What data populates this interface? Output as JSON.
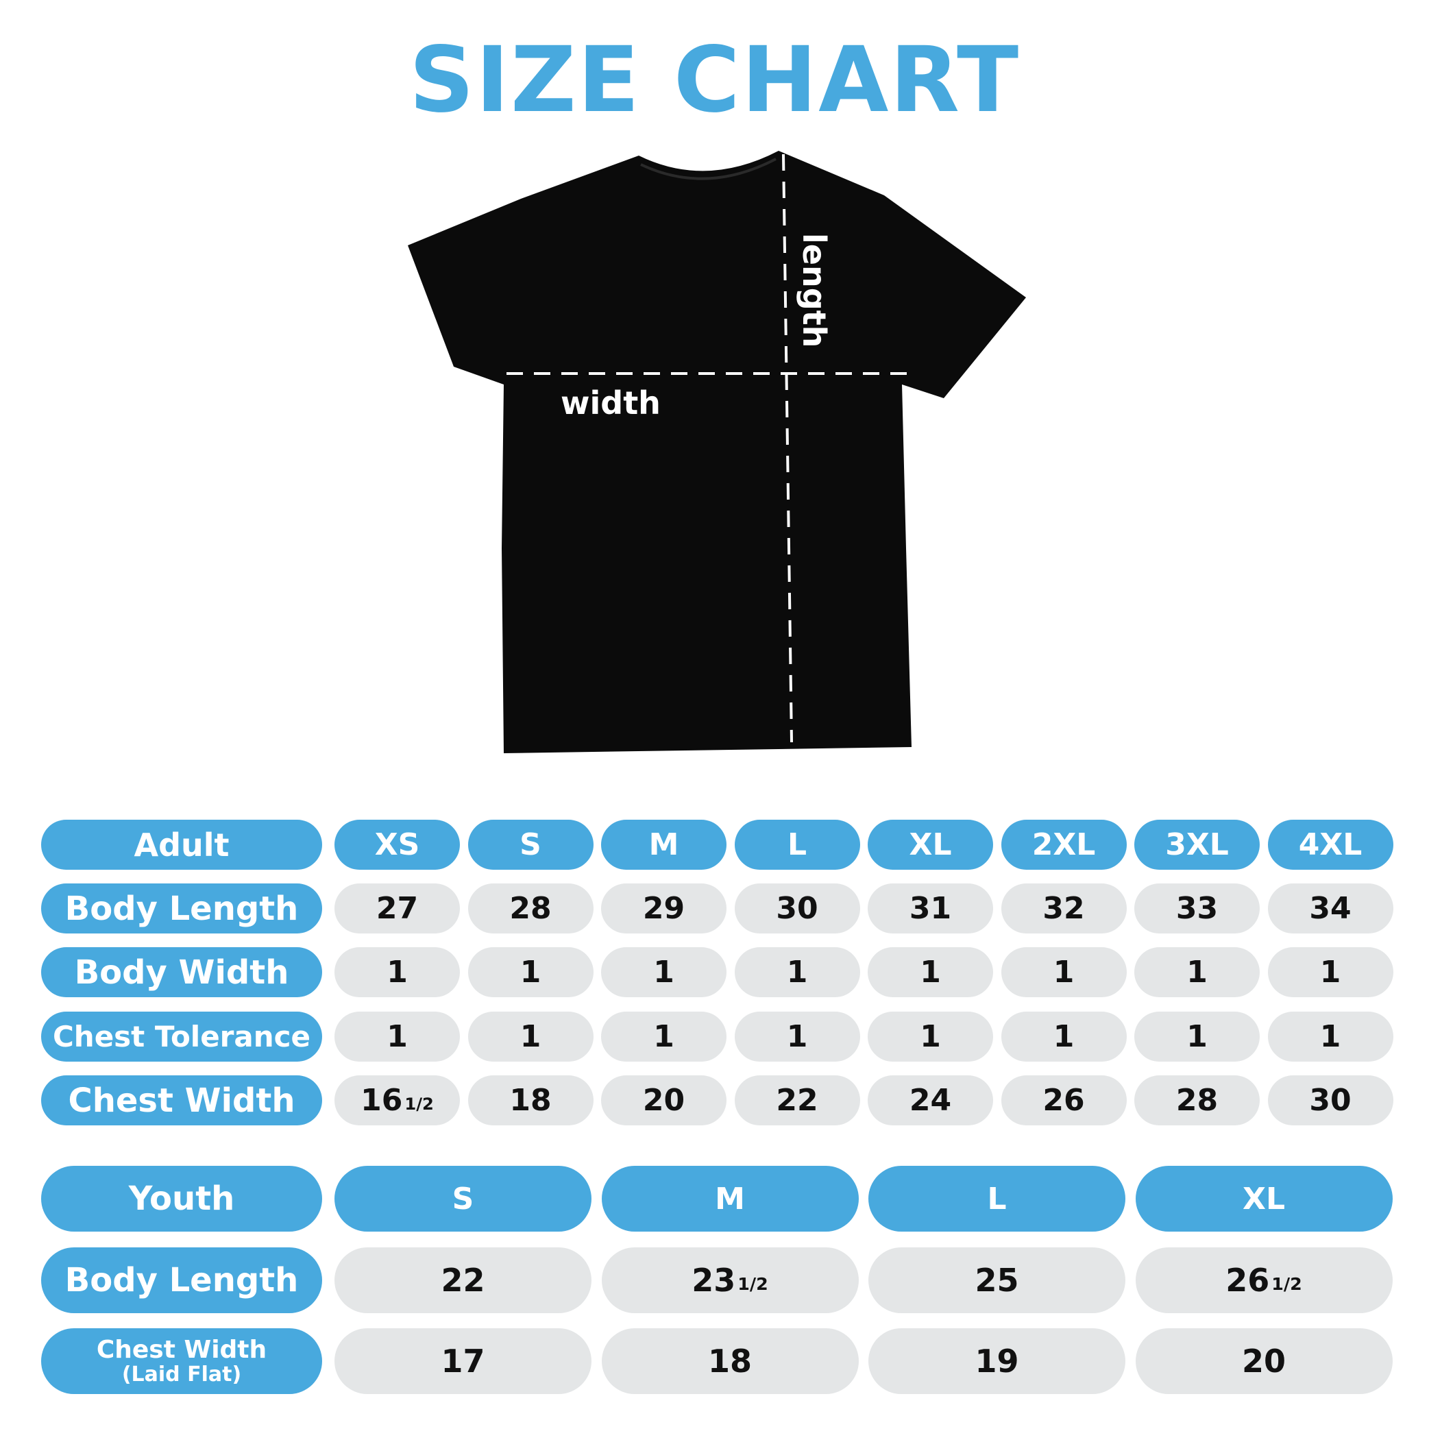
{
  "title": "SIZE CHART",
  "colors": {
    "accent": "#48a9de",
    "cell": "#e4e6e7",
    "shirt": "#0b0b0b"
  },
  "shirt": {
    "width_label": "width",
    "length_label": "length"
  },
  "adult": {
    "header": "Adult",
    "sizes": [
      "XS",
      "S",
      "M",
      "L",
      "XL",
      "2XL",
      "3XL",
      "4XL"
    ],
    "rows": [
      {
        "label": "Body Length",
        "values": [
          {
            "v": "27"
          },
          {
            "v": "28"
          },
          {
            "v": "29"
          },
          {
            "v": "30"
          },
          {
            "v": "31"
          },
          {
            "v": "32"
          },
          {
            "v": "33"
          },
          {
            "v": "34"
          }
        ]
      },
      {
        "label": "Body Width",
        "values": [
          {
            "v": "1"
          },
          {
            "v": "1"
          },
          {
            "v": "1"
          },
          {
            "v": "1"
          },
          {
            "v": "1"
          },
          {
            "v": "1"
          },
          {
            "v": "1"
          },
          {
            "v": "1"
          }
        ]
      },
      {
        "label": "Chest Tolerance",
        "values": [
          {
            "v": "1"
          },
          {
            "v": "1"
          },
          {
            "v": "1"
          },
          {
            "v": "1"
          },
          {
            "v": "1"
          },
          {
            "v": "1"
          },
          {
            "v": "1"
          },
          {
            "v": "1"
          }
        ]
      },
      {
        "label": "Chest Width",
        "values": [
          {
            "v": "16",
            "frac": "1/2"
          },
          {
            "v": "18"
          },
          {
            "v": "20"
          },
          {
            "v": "22"
          },
          {
            "v": "24"
          },
          {
            "v": "26"
          },
          {
            "v": "28"
          },
          {
            "v": "30"
          }
        ]
      }
    ]
  },
  "youth": {
    "header": "Youth",
    "sizes": [
      "S",
      "M",
      "L",
      "XL"
    ],
    "rows": [
      {
        "label": "Body Length",
        "values": [
          {
            "v": "22"
          },
          {
            "v": "23",
            "frac": "1/2"
          },
          {
            "v": "25"
          },
          {
            "v": "26",
            "frac": "1/2"
          }
        ]
      },
      {
        "label": "Chest Width",
        "sublabel": "(Laid Flat)",
        "values": [
          {
            "v": "17"
          },
          {
            "v": "18"
          },
          {
            "v": "19"
          },
          {
            "v": "20"
          }
        ]
      }
    ]
  }
}
